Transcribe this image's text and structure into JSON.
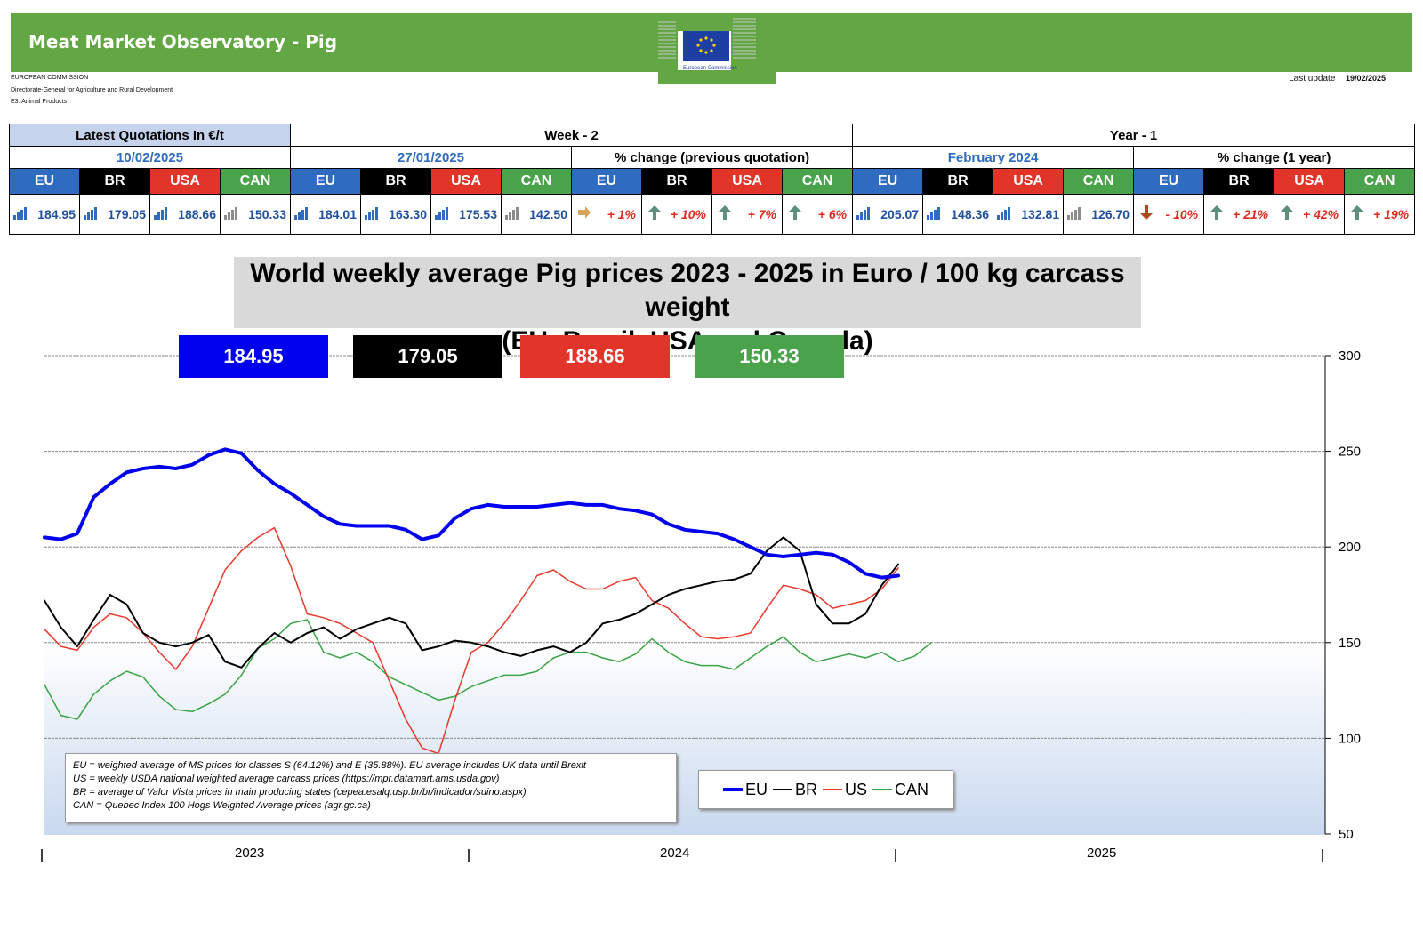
{
  "header": {
    "title": "Meat Market Observatory - Pig",
    "logo_text": "European Commission",
    "org_lines": [
      "EUROPEAN COMMISSION",
      "Directorate-General for Agriculture and Rural Development",
      "E3. Animal Products"
    ],
    "last_update_label": "Last update :",
    "last_update_value": "19/02/2025"
  },
  "table": {
    "latest_label": "Latest Quotations In €/t",
    "week2_label": "Week - 2",
    "year1_label": "Year - 1",
    "latest_date": "10/02/2025",
    "week2_date": "27/01/2025",
    "pct_prev_label": "% change (previous quotation)",
    "year1_date": "February 2024",
    "pct_year_label": "% change (1 year)",
    "markets": [
      "EU",
      "BR",
      "USA",
      "CAN"
    ],
    "latest_values": [
      "184.95",
      "179.05",
      "188.66",
      "150.33"
    ],
    "week2_values": [
      "184.01",
      "163.30",
      "175.53",
      "142.50"
    ],
    "pct_prev": [
      "+ 1%",
      "+ 10%",
      "+ 7%",
      "+ 6%"
    ],
    "pct_prev_dir": [
      "flat",
      "up",
      "up",
      "up"
    ],
    "year1_values": [
      "205.07",
      "148.36",
      "132.81",
      "126.70"
    ],
    "pct_year": [
      "- 10%",
      "+ 21%",
      "+ 42%",
      "+ 19%"
    ],
    "pct_year_dir": [
      "down",
      "up",
      "up",
      "up"
    ]
  },
  "chart_title": {
    "line1": "World weekly average Pig prices 2023 - 2025  in Euro / 100 kg carcass weight",
    "line2": "(EU, Brazil, USA and Canada)"
  },
  "value_boxes": [
    "184.95",
    "179.05",
    "188.66",
    "150.33"
  ],
  "notes": [
    "EU    = weighted average of MS prices for classes S (64.12%) and E (35.88%). EU average includes UK data  until Brexit",
    "US    = weekly USDA national weighted average carcass prices (https://mpr.datamart.ams.usda.gov)",
    "BR    = average of Valor Vista prices in main producing states (cepea.esalq.usp.br/br/indicador/suino.aspx)",
    "CAN = Quebec Index 100 Hogs Weighted Average prices (agr.gc.ca)"
  ],
  "legend": [
    "EU",
    "BR",
    "US",
    "CAN"
  ],
  "colors": {
    "EU": "#0000ee",
    "BR": "#000000",
    "US": "#e8392c",
    "CAN": "#3aa345",
    "banner": "#62a744"
  },
  "chart_data": {
    "type": "line",
    "title": "World weekly average Pig prices 2023 - 2025  in Euro / 100 kg carcass weight (EU, Brazil, USA and Canada)",
    "x_labels": [
      "2023",
      "2024",
      "2025"
    ],
    "xlim": [
      0,
      156
    ],
    "ylim": [
      50,
      300
    ],
    "y_ticks": [
      50,
      100,
      150,
      200,
      250,
      300
    ],
    "grid": true,
    "legend_position": "bottom-center",
    "x": [
      0,
      2,
      4,
      6,
      8,
      10,
      12,
      14,
      16,
      18,
      20,
      22,
      24,
      26,
      28,
      30,
      32,
      34,
      36,
      38,
      40,
      42,
      44,
      46,
      48,
      50,
      52,
      54,
      56,
      58,
      60,
      62,
      64,
      66,
      68,
      70,
      72,
      74,
      76,
      78,
      80,
      82,
      84,
      86,
      88,
      90,
      92,
      94,
      96,
      98,
      100,
      102,
      104,
      106,
      108,
      110
    ],
    "series": [
      {
        "name": "EU",
        "values": [
          205,
          204,
          207,
          226,
          233,
          239,
          241,
          242,
          241,
          243,
          248,
          251,
          249,
          240,
          233,
          228,
          222,
          216,
          212,
          211,
          211,
          211,
          209,
          204,
          206,
          215,
          220,
          222,
          221,
          221,
          221,
          222,
          223,
          222,
          222,
          220,
          219,
          217,
          212,
          209,
          208,
          207,
          204,
          200,
          196,
          195,
          196,
          197,
          196,
          192,
          186,
          184,
          185,
          null,
          null,
          null
        ]
      },
      {
        "name": "BR",
        "values": [
          172,
          158,
          148,
          162,
          175,
          170,
          155,
          150,
          148,
          150,
          154,
          140,
          137,
          147,
          155,
          150,
          155,
          158,
          152,
          157,
          160,
          163,
          160,
          146,
          148,
          151,
          150,
          148,
          145,
          143,
          146,
          148,
          145,
          150,
          160,
          162,
          165,
          170,
          175,
          178,
          180,
          182,
          183,
          186,
          198,
          205,
          198,
          170,
          160,
          160,
          165,
          180,
          191,
          null,
          null,
          null
        ]
      },
      {
        "name": "US",
        "values": [
          157,
          148,
          146,
          158,
          165,
          163,
          155,
          145,
          136,
          148,
          168,
          188,
          198,
          205,
          210,
          190,
          165,
          163,
          160,
          155,
          150,
          130,
          110,
          95,
          92,
          120,
          145,
          150,
          160,
          172,
          185,
          188,
          182,
          178,
          178,
          182,
          184,
          172,
          168,
          160,
          153,
          152,
          153,
          155,
          168,
          180,
          178,
          175,
          168,
          170,
          172,
          178,
          189,
          null,
          null,
          null
        ]
      },
      {
        "name": "CAN",
        "values": [
          128,
          112,
          110,
          123,
          130,
          135,
          132,
          122,
          115,
          114,
          118,
          123,
          133,
          147,
          152,
          160,
          162,
          145,
          142,
          145,
          140,
          132,
          128,
          124,
          120,
          122,
          127,
          130,
          133,
          133,
          135,
          142,
          145,
          145,
          142,
          140,
          144,
          152,
          145,
          140,
          138,
          138,
          136,
          142,
          148,
          153,
          145,
          140,
          142,
          144,
          142,
          145,
          140,
          143,
          150,
          null
        ]
      }
    ]
  }
}
